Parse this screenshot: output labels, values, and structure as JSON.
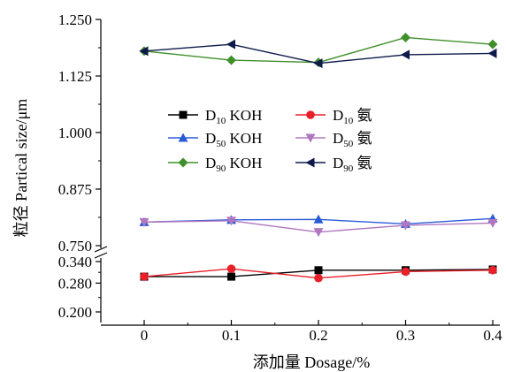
{
  "chart_data": {
    "type": "line",
    "x": [
      0,
      0.1,
      0.2,
      0.3,
      0.4
    ],
    "x_tick_labels": [
      "0",
      "0.1",
      "0.2",
      "0.3",
      "0.4"
    ],
    "xlabel": "添加量 Dosage/%",
    "ylabel": "粒径 Partical size/μm",
    "y_axis_break": true,
    "upper_segment": {
      "ylim": [
        0.75,
        1.25
      ],
      "tick_labels": [
        "0.750",
        "0.875",
        "1.000",
        "1.125",
        "1.250"
      ],
      "tick_values": [
        0.75,
        0.875,
        1.0,
        1.125,
        1.25
      ]
    },
    "lower_segment": {
      "ylim": [
        0.2,
        0.34
      ],
      "tick_labels": [
        "0.200",
        "0.280",
        "0.340"
      ],
      "tick_values": [
        0.2,
        0.28,
        0.34
      ]
    },
    "legend_position": "center",
    "series": [
      {
        "name": "D10 KOH",
        "base": "D",
        "sub": "10",
        "suffix": " KOH",
        "color": "#000000",
        "marker": "square",
        "values": [
          0.298,
          0.298,
          0.316,
          0.316,
          0.318
        ]
      },
      {
        "name": "D10 氨",
        "base": "D",
        "sub": "10",
        "suffix": " 氨",
        "color": "#e8202a",
        "marker": "circle",
        "values": [
          0.298,
          0.32,
          0.294,
          0.312,
          0.316
        ]
      },
      {
        "name": "D50 KOH",
        "base": "D",
        "sub": "50",
        "suffix": " KOH",
        "color": "#2a5bd7",
        "marker": "triangle-up",
        "values": [
          0.802,
          0.807,
          0.808,
          0.798,
          0.81
        ]
      },
      {
        "name": "D50 氨",
        "base": "D",
        "sub": "50",
        "suffix": " 氨",
        "color": "#b077c0",
        "marker": "triangle-down",
        "values": [
          0.802,
          0.805,
          0.78,
          0.795,
          0.8
        ]
      },
      {
        "name": "D90 KOH",
        "base": "D",
        "sub": "90",
        "suffix": " KOH",
        "color": "#3f8f2a",
        "marker": "diamond",
        "values": [
          1.18,
          1.16,
          1.155,
          1.21,
          1.195
        ]
      },
      {
        "name": "D90 氨",
        "base": "D",
        "sub": "90",
        "suffix": " 氨",
        "color": "#0d1a4a",
        "marker": "triangle-left",
        "values": [
          1.18,
          1.195,
          1.153,
          1.172,
          1.175
        ]
      }
    ]
  }
}
